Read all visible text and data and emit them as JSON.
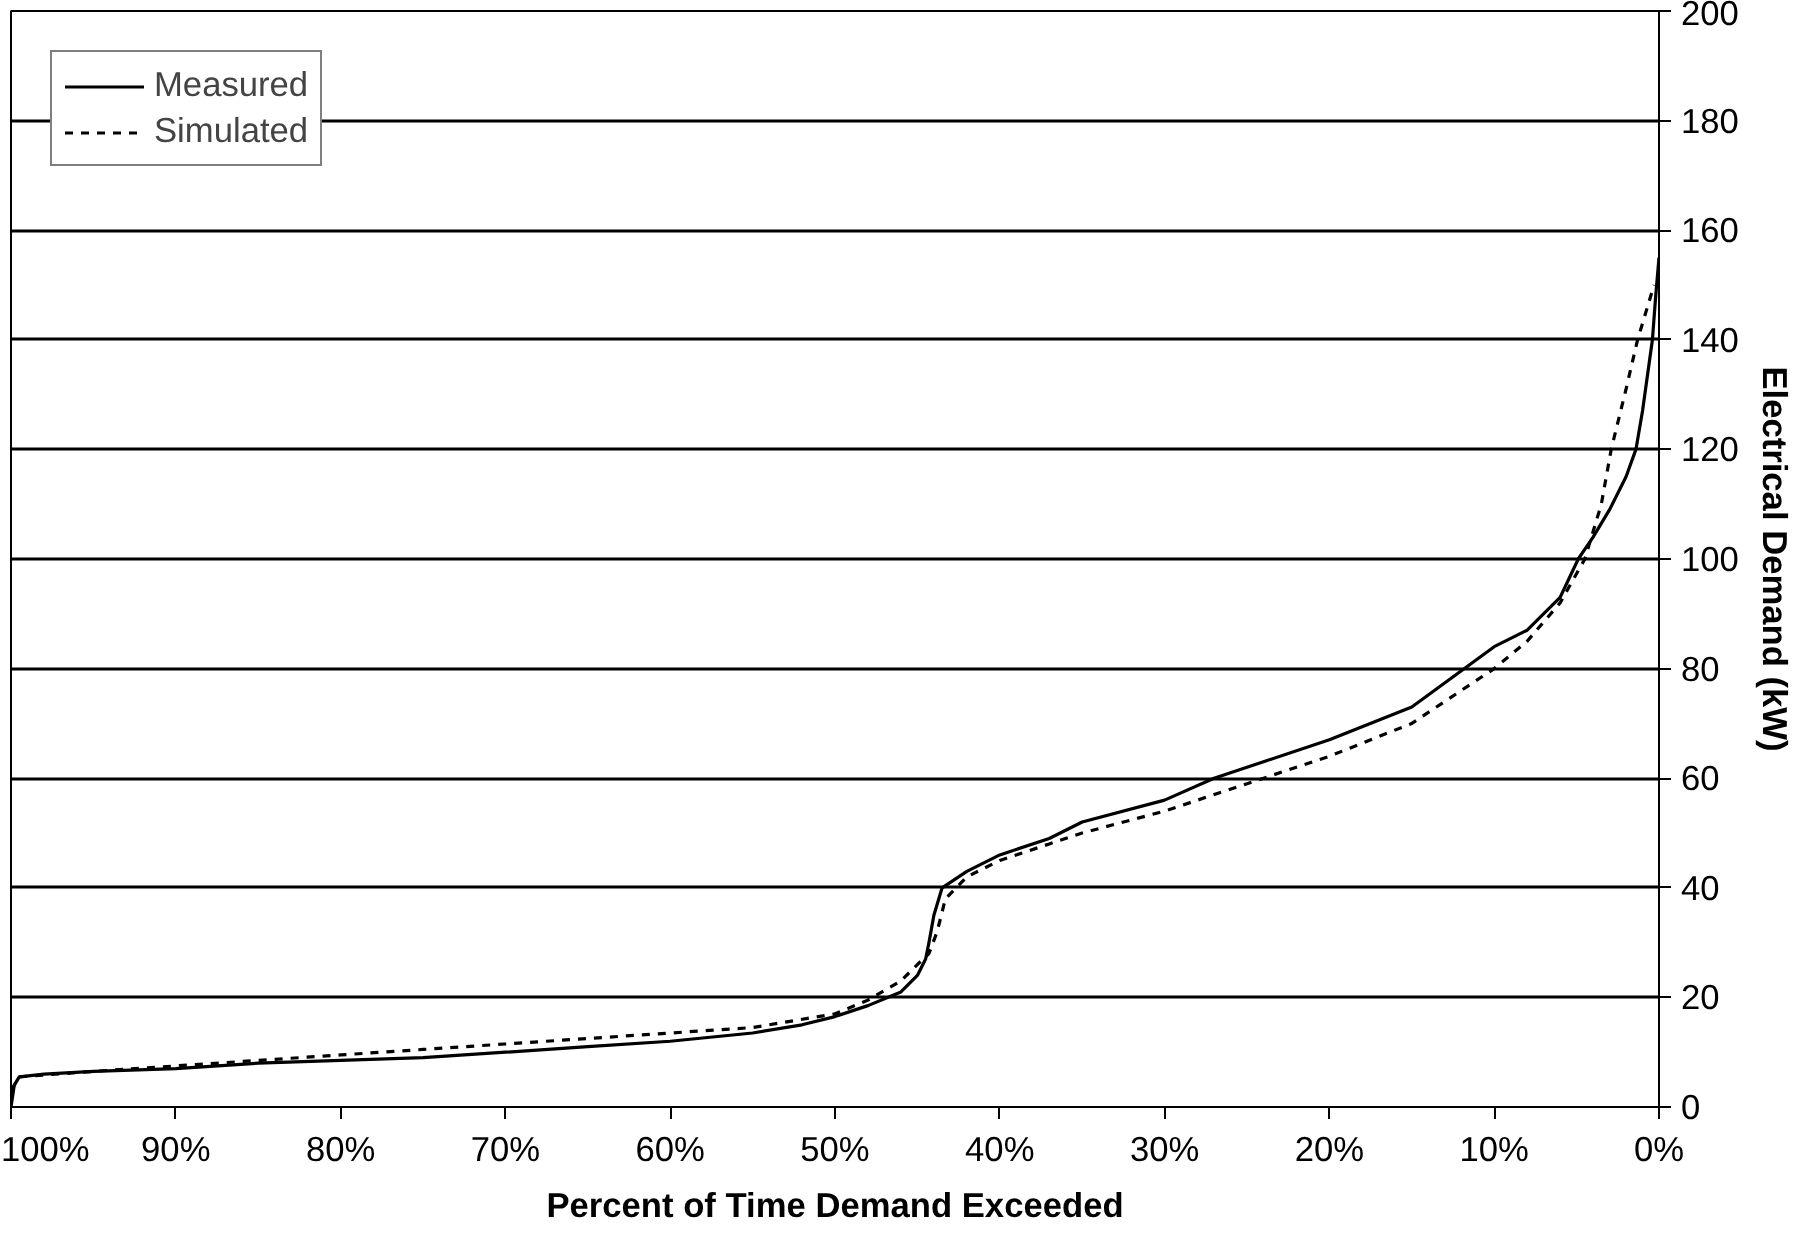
{
  "chart_data": {
    "type": "line",
    "xlabel": "Percent of Time Demand Exceeded",
    "ylabel": "Electrical Demand (kW)",
    "xlim": [
      100,
      0
    ],
    "ylim": [
      0,
      200
    ],
    "xticks": [
      {
        "value": 100,
        "label": "100%"
      },
      {
        "value": 90,
        "label": "90%"
      },
      {
        "value": 80,
        "label": "80%"
      },
      {
        "value": 70,
        "label": "70%"
      },
      {
        "value": 60,
        "label": "60%"
      },
      {
        "value": 50,
        "label": "50%"
      },
      {
        "value": 40,
        "label": "40%"
      },
      {
        "value": 30,
        "label": "30%"
      },
      {
        "value": 20,
        "label": "20%"
      },
      {
        "value": 10,
        "label": "10%"
      },
      {
        "value": 0,
        "label": "0%"
      }
    ],
    "yticks": [
      0,
      20,
      40,
      60,
      80,
      100,
      120,
      140,
      160,
      180,
      200
    ],
    "grid": "y",
    "legend": "top left",
    "marker": "none",
    "series": [
      {
        "name": "Measured",
        "color": "#000000",
        "line_style": "solid",
        "x": [
          100,
          99.8,
          99.5,
          98,
          95,
          90,
          85,
          80,
          75,
          70,
          65,
          60,
          55,
          52,
          50,
          48,
          46,
          45,
          44.5,
          44.3,
          44,
          43.5,
          42,
          40,
          37,
          35,
          30,
          27,
          25,
          20,
          15,
          10,
          8,
          6,
          4.9,
          4,
          3,
          2,
          1.4,
          1,
          0.4,
          0.2,
          0
        ],
        "values": [
          0,
          4,
          5.5,
          6,
          6.5,
          7,
          8,
          8.5,
          9,
          10,
          11,
          12,
          13.5,
          15,
          16.5,
          18.5,
          21,
          24,
          27,
          30,
          35,
          40,
          43,
          46,
          49,
          52,
          56,
          60,
          62,
          67,
          73,
          84,
          87,
          93,
          100,
          104,
          109,
          115,
          120,
          127,
          140,
          148,
          155
        ]
      },
      {
        "name": "Simulated",
        "color": "#000000",
        "line_style": "dashed",
        "x": [
          100,
          99.5,
          95,
          90,
          85,
          80,
          75,
          70,
          65,
          60,
          55,
          50,
          48,
          46,
          45,
          44.3,
          43.8,
          43.3,
          42,
          40,
          37,
          35,
          30,
          25,
          20,
          15,
          10,
          8,
          6,
          4.5,
          3.5,
          2.9,
          2,
          1.3,
          0.8,
          0.3
        ],
        "values": [
          3,
          5.5,
          6.5,
          7.5,
          8.5,
          9.5,
          10.5,
          11.5,
          12.5,
          13.5,
          14.5,
          17,
          19.5,
          23,
          26,
          28,
          32,
          38,
          42,
          45,
          48,
          50,
          54,
          59,
          64,
          70,
          80,
          85,
          92,
          100,
          110,
          120,
          131,
          140,
          145,
          150
        ]
      }
    ]
  }
}
